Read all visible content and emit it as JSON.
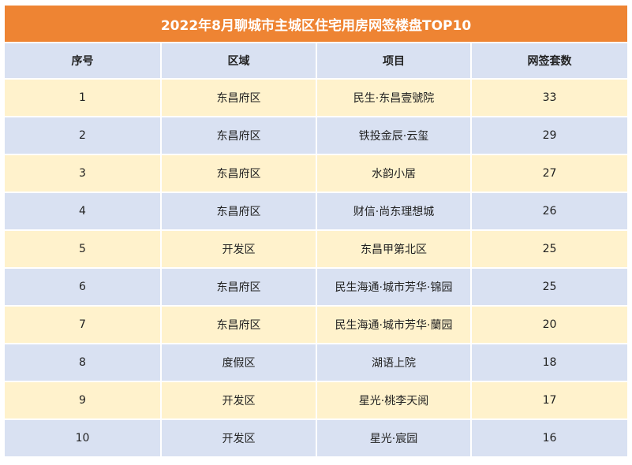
{
  "title": "2022年8月聊城市主城区住宅用房网签楼盘TOP10",
  "headers": [
    "序号",
    "区域",
    "项目",
    "网签套数"
  ],
  "rows": [
    {
      "no": "1",
      "district": "东昌府区",
      "project": "民生·东昌壹號院",
      "count": "33"
    },
    {
      "no": "2",
      "district": "东昌府区",
      "project": "铁投金辰·云玺",
      "count": "29"
    },
    {
      "no": "3",
      "district": "东昌府区",
      "project": "水韵小居",
      "count": "27"
    },
    {
      "no": "4",
      "district": "东昌府区",
      "project": "财信·尚东理想城",
      "count": "26"
    },
    {
      "no": "5",
      "district": "开发区",
      "project": "东昌甲第北区",
      "count": "25"
    },
    {
      "no": "6",
      "district": "东昌府区",
      "project": "民生海通·城市芳华·锦园",
      "count": "25"
    },
    {
      "no": "7",
      "district": "东昌府区",
      "project": "民生海通·城市芳华·蘭园",
      "count": "20"
    },
    {
      "no": "8",
      "district": "度假区",
      "project": "湖语上院",
      "count": "18"
    },
    {
      "no": "9",
      "district": "开发区",
      "project": "星光·桃李天阅",
      "count": "17"
    },
    {
      "no": "10",
      "district": "开发区",
      "project": "星光·宸园",
      "count": "16"
    }
  ],
  "colors": {
    "title_bg": "#ee8433",
    "header_bg": "#d9e1f2",
    "row_odd_bg": "#fff2cc",
    "row_even_bg": "#d9e1f2"
  }
}
